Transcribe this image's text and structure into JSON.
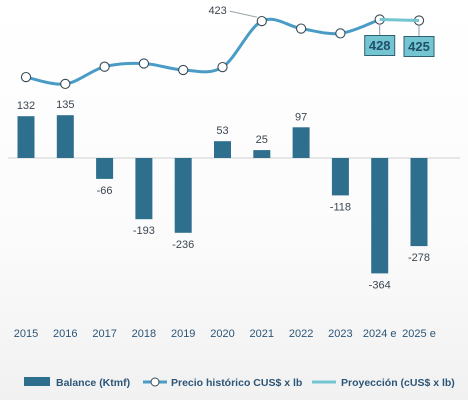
{
  "chart_data": {
    "type": "bar",
    "categories": [
      "2015",
      "2016",
      "2017",
      "2018",
      "2019",
      "2020",
      "2021",
      "2022",
      "2023",
      "2024 e",
      "2025 e"
    ],
    "series": [
      {
        "name": "Balance (Ktmf)",
        "type": "bar",
        "color": "#2e6f8e",
        "values": [
          132,
          135,
          -66,
          -193,
          -236,
          53,
          25,
          97,
          -118,
          -364,
          -278
        ]
      },
      {
        "name": "Precio histórico CUS$ x lb",
        "type": "line",
        "color": "#4a9cc6",
        "values": [
          250,
          229,
          282,
          292,
          272,
          281,
          423,
          400,
          385,
          428,
          425
        ],
        "labeled": {
          "2021": "423"
        }
      },
      {
        "name": "Proyección (cUS$ x lb)",
        "type": "line",
        "color": "#73c6d1",
        "x": [
          "2024 e",
          "2025 e"
        ],
        "values": [
          428,
          425
        ],
        "callouts": [
          "428",
          "425"
        ]
      }
    ],
    "legend": "bottom",
    "grid": false
  }
}
